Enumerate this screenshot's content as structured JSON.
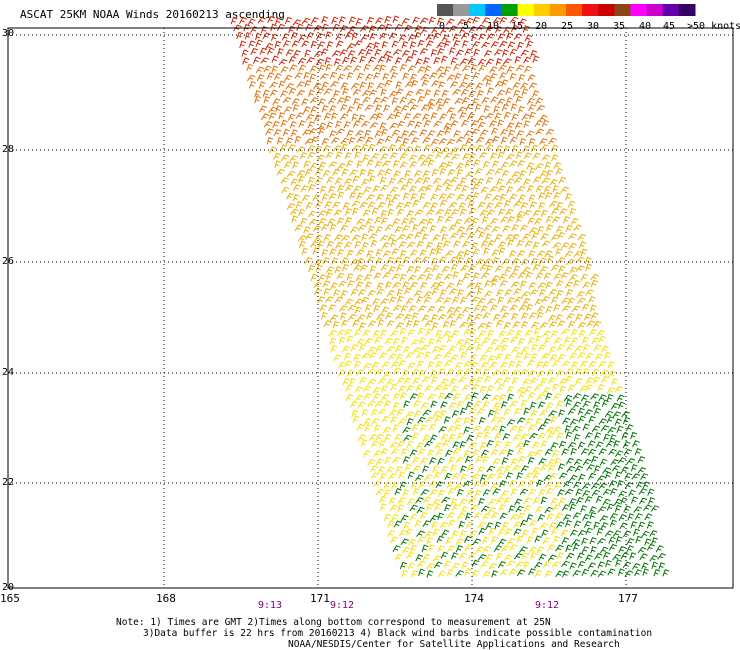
{
  "title": "ASCAT 25KM NOAA Winds 20160213 ascending",
  "legend": {
    "labels": [
      "0",
      "5",
      "10",
      "15",
      "20",
      "25",
      "30",
      "35",
      "40",
      "45",
      ">50 knots"
    ],
    "colors": [
      "#555555",
      "#999999",
      "#00c8ff",
      "#0064ff",
      "#00a000",
      "#ffff00",
      "#ffcc00",
      "#ff9900",
      "#ff5500",
      "#ee1111",
      "#cc0000",
      "#8b4513",
      "#ff00ff",
      "#cc00cc",
      "#6600aa",
      "#330066"
    ]
  },
  "axes": {
    "x_ticks": [
      "165",
      "168",
      "171",
      "174",
      "177"
    ],
    "y_ticks": [
      "30",
      "28",
      "26",
      "24",
      "22",
      "20"
    ]
  },
  "times": [
    "9:13",
    "9:12",
    "9:12"
  ],
  "notes": {
    "line1": "Note: 1) Times are GMT 2)Times along bottom correspond to measurement at 25N",
    "line2": "3)Data buffer is 22 hrs from 20160213 4) Black wind barbs indicate possible contamination",
    "line3": "NOAA/NESDIS/Center for Satellite Applications and Research"
  },
  "colors": {
    "grid": "#000000",
    "barb_red": "#cc2200",
    "barb_orange": "#e07000",
    "barb_gold": "#e8b000",
    "barb_yellow": "#f5e000",
    "barb_green": "#007700"
  }
}
